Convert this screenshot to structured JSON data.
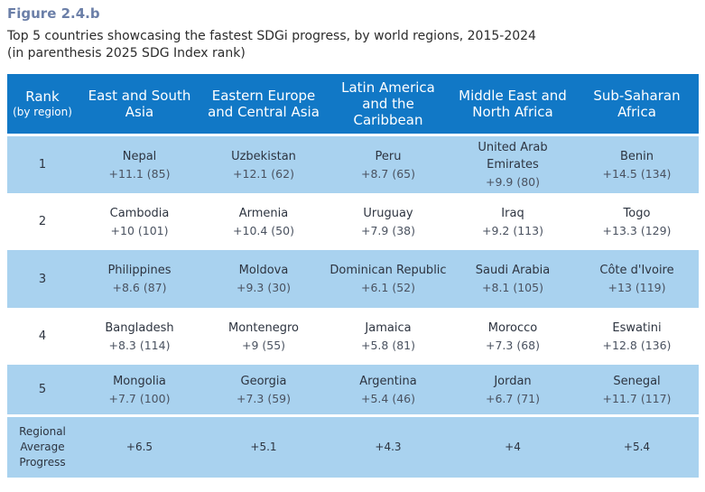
{
  "figure": {
    "label": "Figure 2.4.b",
    "subtitle_line1": "Top 5 countries showcasing the fastest SDGi progress, by world regions, 2015-2024",
    "subtitle_line2": "(in parenthesis 2025 SDG Index rank)"
  },
  "header": {
    "rank_label": "Rank",
    "rank_sub": "(by region)",
    "regions": [
      "East and South Asia",
      "Eastern Europe and Central Asia",
      "Latin America and the Caribbean",
      "Middle East and North Africa",
      "Sub-Saharan Africa"
    ]
  },
  "rows": [
    {
      "rank": "1",
      "cells": [
        {
          "country": "Nepal",
          "score": "+11.1 (85)"
        },
        {
          "country": "Uzbekistan",
          "score": "+12.1 (62)"
        },
        {
          "country": "Peru",
          "score": "+8.7 (65)"
        },
        {
          "country": "United Arab Emirates",
          "score": "+9.9 (80)"
        },
        {
          "country": "Benin",
          "score": "+14.5 (134)"
        }
      ]
    },
    {
      "rank": "2",
      "cells": [
        {
          "country": "Cambodia",
          "score": "+10 (101)"
        },
        {
          "country": "Armenia",
          "score": "+10.4 (50)"
        },
        {
          "country": "Uruguay",
          "score": "+7.9 (38)"
        },
        {
          "country": "Iraq",
          "score": "+9.2 (113)"
        },
        {
          "country": "Togo",
          "score": "+13.3 (129)"
        }
      ]
    },
    {
      "rank": "3",
      "cells": [
        {
          "country": "Philippines",
          "score": "+8.6 (87)"
        },
        {
          "country": "Moldova",
          "score": "+9.3 (30)"
        },
        {
          "country": "Dominican Republic",
          "score": "+6.1 (52)"
        },
        {
          "country": "Saudi Arabia",
          "score": "+8.1 (105)"
        },
        {
          "country": "Côte d'Ivoire",
          "score": "+13 (119)"
        }
      ]
    },
    {
      "rank": "4",
      "cells": [
        {
          "country": "Bangladesh",
          "score": "+8.3 (114)"
        },
        {
          "country": "Montenegro",
          "score": "+9 (55)"
        },
        {
          "country": "Jamaica",
          "score": "+5.8 (81)"
        },
        {
          "country": "Morocco",
          "score": "+7.3 (68)"
        },
        {
          "country": "Eswatini",
          "score": "+12.8 (136)"
        }
      ]
    },
    {
      "rank": "5",
      "cells": [
        {
          "country": "Mongolia",
          "score": "+7.7 (100)"
        },
        {
          "country": "Georgia",
          "score": "+7.3 (59)"
        },
        {
          "country": "Argentina",
          "score": "+5.4 (46)"
        },
        {
          "country": "Jordan",
          "score": "+6.7 (71)"
        },
        {
          "country": "Senegal",
          "score": "+11.7 (117)"
        }
      ]
    }
  ],
  "average": {
    "label": "Regional Average Progress",
    "values": [
      "+6.5",
      "+5.1",
      "+4.3",
      "+4",
      "+5.4"
    ]
  }
}
